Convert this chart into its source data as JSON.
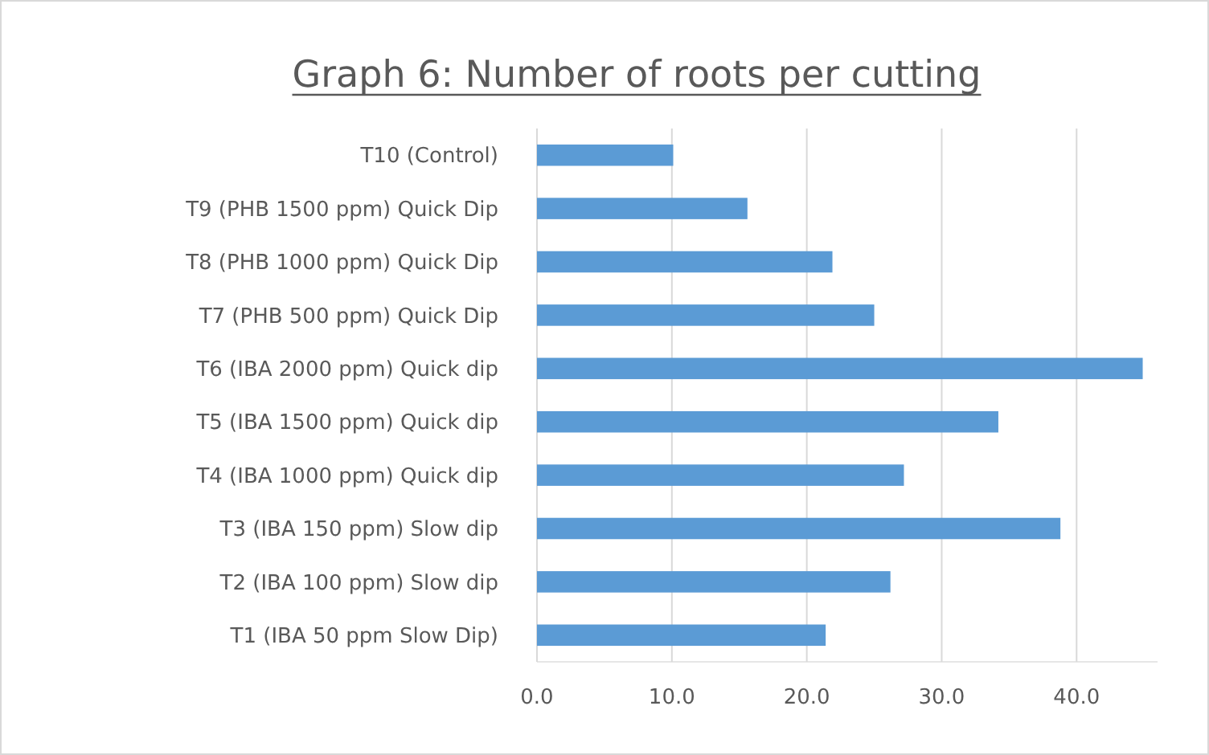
{
  "chart_data": {
    "type": "bar",
    "orientation": "horizontal",
    "title": "Graph 6: Number of roots per cutting",
    "categories": [
      "T10 (Control)",
      "T9 (PHB 1500 ppm) Quick Dip",
      "T8 (PHB 1000 ppm) Quick Dip",
      "T7 (PHB 500 ppm) Quick Dip",
      "T6 (IBA 2000 ppm) Quick dip",
      "T5 (IBA 1500 ppm) Quick dip",
      "T4 (IBA 1000 ppm) Quick dip",
      "T3 (IBA 150 ppm) Slow dip",
      "T2 (IBA 100 ppm) Slow dip",
      "T1 (IBA 50 ppm Slow Dip)"
    ],
    "values": [
      10.1,
      15.6,
      21.9,
      25.0,
      44.9,
      34.2,
      27.2,
      38.8,
      26.2,
      21.4
    ],
    "color": "#5b9bd5",
    "xlim": [
      0,
      46
    ],
    "xticks": [
      {
        "value": 0,
        "label": "0.0"
      },
      {
        "value": 10,
        "label": "10.0"
      },
      {
        "value": 20,
        "label": "20.0"
      },
      {
        "value": 30,
        "label": "30.0"
      },
      {
        "value": 40,
        "label": "40.0"
      }
    ],
    "grid": "x"
  }
}
